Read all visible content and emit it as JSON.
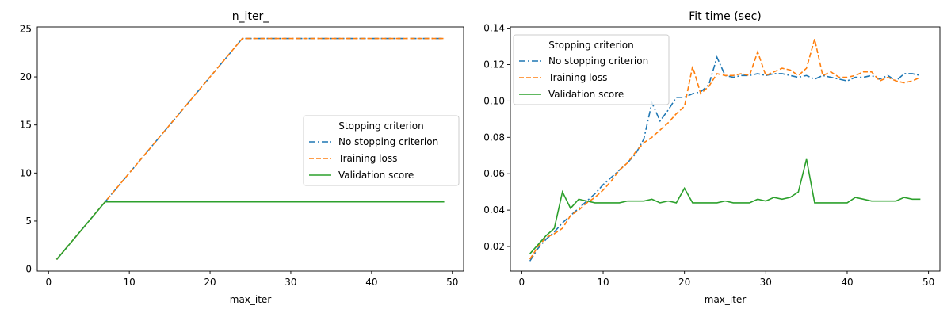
{
  "colors": {
    "no_stop": "#1f77b4",
    "train": "#ff7f0e",
    "valid": "#2ca02c",
    "axis": "#000000"
  },
  "chart_data": [
    {
      "type": "line",
      "title": "n_iter_",
      "xlabel": "max_iter",
      "ylabel": "",
      "xlim": [
        -1.4,
        51.4
      ],
      "ylim": [
        -0.2,
        25.2
      ],
      "xticks": [
        0,
        10,
        20,
        30,
        40,
        50
      ],
      "yticks": [
        0,
        5,
        10,
        15,
        20,
        25
      ],
      "yticklabels": [
        "0",
        "5",
        "10",
        "15",
        "20",
        "25"
      ],
      "grid": false,
      "legend": {
        "title": "Stopping criterion",
        "placement": "center-right",
        "entries": [
          "No stopping criterion",
          "Training loss",
          "Validation score"
        ]
      },
      "series": [
        {
          "name": "No stopping criterion",
          "style": "dashdot",
          "x": [
            1,
            24,
            49
          ],
          "y": [
            1,
            24,
            24
          ]
        },
        {
          "name": "Training loss",
          "style": "dashed",
          "x": [
            1,
            24,
            49
          ],
          "y": [
            1,
            24,
            24
          ]
        },
        {
          "name": "Validation score",
          "style": "solid",
          "x": [
            1,
            7,
            49
          ],
          "y": [
            1,
            7,
            7
          ]
        }
      ]
    },
    {
      "type": "line",
      "title": "Fit time (sec)",
      "xlabel": "max_iter",
      "ylabel": "",
      "xlim": [
        -1.4,
        51.4
      ],
      "ylim": [
        0.0065,
        0.1407
      ],
      "xticks": [
        0,
        10,
        20,
        30,
        40,
        50
      ],
      "yticks": [
        0.02,
        0.04,
        0.06,
        0.08,
        0.1,
        0.12,
        0.14
      ],
      "yticklabels": [
        "0.02",
        "0.04",
        "0.06",
        "0.08",
        "0.10",
        "0.12",
        "0.14"
      ],
      "grid": false,
      "legend": {
        "title": "Stopping criterion",
        "placement": "upper-left",
        "entries": [
          "No stopping criterion",
          "Training loss",
          "Validation score"
        ]
      },
      "x": [
        1,
        2,
        3,
        4,
        5,
        6,
        7,
        8,
        9,
        10,
        11,
        12,
        13,
        14,
        15,
        16,
        17,
        18,
        19,
        20,
        21,
        22,
        23,
        24,
        25,
        26,
        27,
        28,
        29,
        30,
        31,
        32,
        33,
        34,
        35,
        36,
        37,
        38,
        39,
        40,
        41,
        42,
        43,
        44,
        45,
        46,
        47,
        48,
        49
      ],
      "series": [
        {
          "name": "No stopping criterion",
          "style": "dashdot",
          "y": [
            0.012,
            0.019,
            0.024,
            0.028,
            0.033,
            0.037,
            0.041,
            0.045,
            0.049,
            0.054,
            0.058,
            0.062,
            0.066,
            0.071,
            0.079,
            0.099,
            0.089,
            0.095,
            0.102,
            0.102,
            0.104,
            0.105,
            0.109,
            0.124,
            0.114,
            0.113,
            0.114,
            0.114,
            0.115,
            0.114,
            0.115,
            0.115,
            0.114,
            0.113,
            0.114,
            0.112,
            0.114,
            0.113,
            0.112,
            0.111,
            0.113,
            0.113,
            0.114,
            0.112,
            0.114,
            0.111,
            0.115,
            0.115,
            0.114
          ]
        },
        {
          "name": "Training loss",
          "style": "dashed",
          "y": [
            0.013,
            0.02,
            0.025,
            0.027,
            0.03,
            0.037,
            0.04,
            0.044,
            0.047,
            0.051,
            0.056,
            0.062,
            0.066,
            0.072,
            0.077,
            0.08,
            0.084,
            0.088,
            0.093,
            0.097,
            0.119,
            0.104,
            0.108,
            0.115,
            0.114,
            0.114,
            0.115,
            0.114,
            0.127,
            0.114,
            0.116,
            0.118,
            0.117,
            0.114,
            0.118,
            0.134,
            0.114,
            0.116,
            0.113,
            0.113,
            0.114,
            0.116,
            0.116,
            0.111,
            0.113,
            0.111,
            0.11,
            0.111,
            0.113
          ]
        },
        {
          "name": "Validation score",
          "style": "solid",
          "y": [
            0.016,
            0.021,
            0.026,
            0.03,
            0.05,
            0.041,
            0.046,
            0.045,
            0.044,
            0.044,
            0.044,
            0.044,
            0.045,
            0.045,
            0.045,
            0.046,
            0.044,
            0.045,
            0.044,
            0.052,
            0.044,
            0.044,
            0.044,
            0.044,
            0.045,
            0.044,
            0.044,
            0.044,
            0.046,
            0.045,
            0.047,
            0.046,
            0.047,
            0.05,
            0.068,
            0.044,
            0.044,
            0.044,
            0.044,
            0.044,
            0.047,
            0.046,
            0.045,
            0.045,
            0.045,
            0.045,
            0.047,
            0.046,
            0.046
          ]
        }
      ]
    }
  ]
}
